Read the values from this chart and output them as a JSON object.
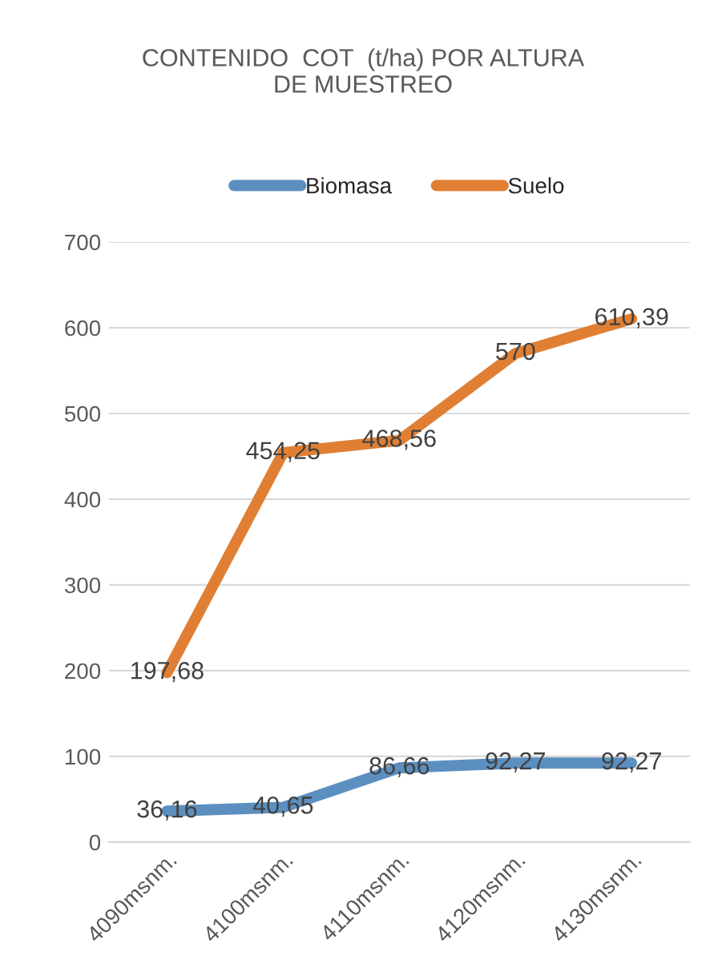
{
  "chart_data": {
    "type": "line",
    "title": "CONTENIDO  COT  (t/ha) POR ALTURA\nDE MUESTREO",
    "categories": [
      "4090msnm.",
      "4100msnm.",
      "4110msnm.",
      "4120msnm.",
      "4130msnm."
    ],
    "series": [
      {
        "name": "Biomasa",
        "color": "#5b8fbf",
        "values": [
          36.16,
          40.65,
          86.66,
          92.27,
          92.27
        ],
        "value_labels": [
          "36,16",
          "40,65",
          "86,66",
          "92,27",
          "92,27"
        ]
      },
      {
        "name": "Suelo",
        "color": "#e07f33",
        "values": [
          197.68,
          454.25,
          468.56,
          570,
          610.39
        ],
        "value_labels": [
          "197,68",
          "454,25",
          "468,56",
          "570",
          "610,39"
        ]
      }
    ],
    "ylim": [
      0,
      700
    ],
    "yticks": [
      0,
      100,
      200,
      300,
      400,
      500,
      600,
      700
    ],
    "grid": "y",
    "legend": "top",
    "marker": "none",
    "line_style": "solid"
  }
}
